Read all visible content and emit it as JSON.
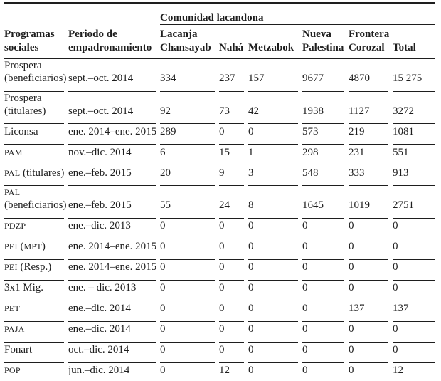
{
  "table": {
    "group_header": "Comunidad lacandona",
    "columns": [
      "Programas sociales",
      "Periodo de empadronamiento",
      "Lacanja Chansayab",
      "Nahá",
      "Metzabok",
      "Nueva Palestina",
      "Frontera Corozal",
      "Total"
    ],
    "rows": [
      {
        "program": "Prospera\n(beneficiarios)",
        "period": "sept.–oct. 2014",
        "values": [
          "334",
          "237",
          "157",
          "9677",
          "4870",
          "15 275"
        ]
      },
      {
        "program": "Prospera\n(titulares)",
        "period": "sept.–oct. 2014",
        "values": [
          "92",
          "73",
          "42",
          "1938",
          "1127",
          "3272"
        ]
      },
      {
        "program": "Liconsa",
        "period": "ene. 2014–ene. 2015",
        "values": [
          "289",
          "0",
          "0",
          "573",
          "219",
          "1081"
        ]
      },
      {
        "program": "PAM",
        "period": "nov.–dic. 2014",
        "values": [
          "6",
          "15",
          "1",
          "298",
          "231",
          "551"
        ]
      },
      {
        "program": "PAL (titulares)",
        "period": "ene.–feb. 2015",
        "values": [
          "20",
          "9",
          "3",
          "548",
          "333",
          "913"
        ]
      },
      {
        "program": "PAL\n(beneficiarios)",
        "period": "ene.–feb. 2015",
        "values": [
          "55",
          "24",
          "8",
          "1645",
          "1019",
          "2751"
        ]
      },
      {
        "program": "PDZP",
        "period": "ene.–dic. 2013",
        "values": [
          "0",
          "0",
          "0",
          "0",
          "0",
          "0"
        ]
      },
      {
        "program": "PEI (MPT)",
        "period": "ene. 2014–ene. 2015",
        "values": [
          "0",
          "0",
          "0",
          "0",
          "0",
          "0"
        ]
      },
      {
        "program": "PEI (Resp.)",
        "period": "ene. 2014–ene. 2015",
        "values": [
          "0",
          "0",
          "0",
          "0",
          "0",
          "0"
        ]
      },
      {
        "program": "3x1 Mig.",
        "period": "ene. – dic. 2013",
        "values": [
          "0",
          "0",
          "0",
          "0",
          "0",
          "0"
        ]
      },
      {
        "program": "PET",
        "period": "ene.–dic. 2014",
        "values": [
          "0",
          "0",
          "0",
          "0",
          "137",
          "137"
        ]
      },
      {
        "program": "PAJA",
        "period": "ene.–dic. 2014",
        "values": [
          "0",
          "0",
          "0",
          "0",
          "0",
          "0"
        ]
      },
      {
        "program": "Fonart",
        "period": "oct.–dic. 2014",
        "values": [
          "0",
          "0",
          "0",
          "0",
          "0",
          "0"
        ]
      },
      {
        "program": "POP",
        "period": "jun.–dic. 2014",
        "values": [
          "0",
          "12",
          "0",
          "0",
          "0",
          "12"
        ]
      }
    ]
  },
  "colors": {
    "text": "#1e1e1e",
    "rule": "#1e1e1e",
    "background": "#ffffff"
  }
}
